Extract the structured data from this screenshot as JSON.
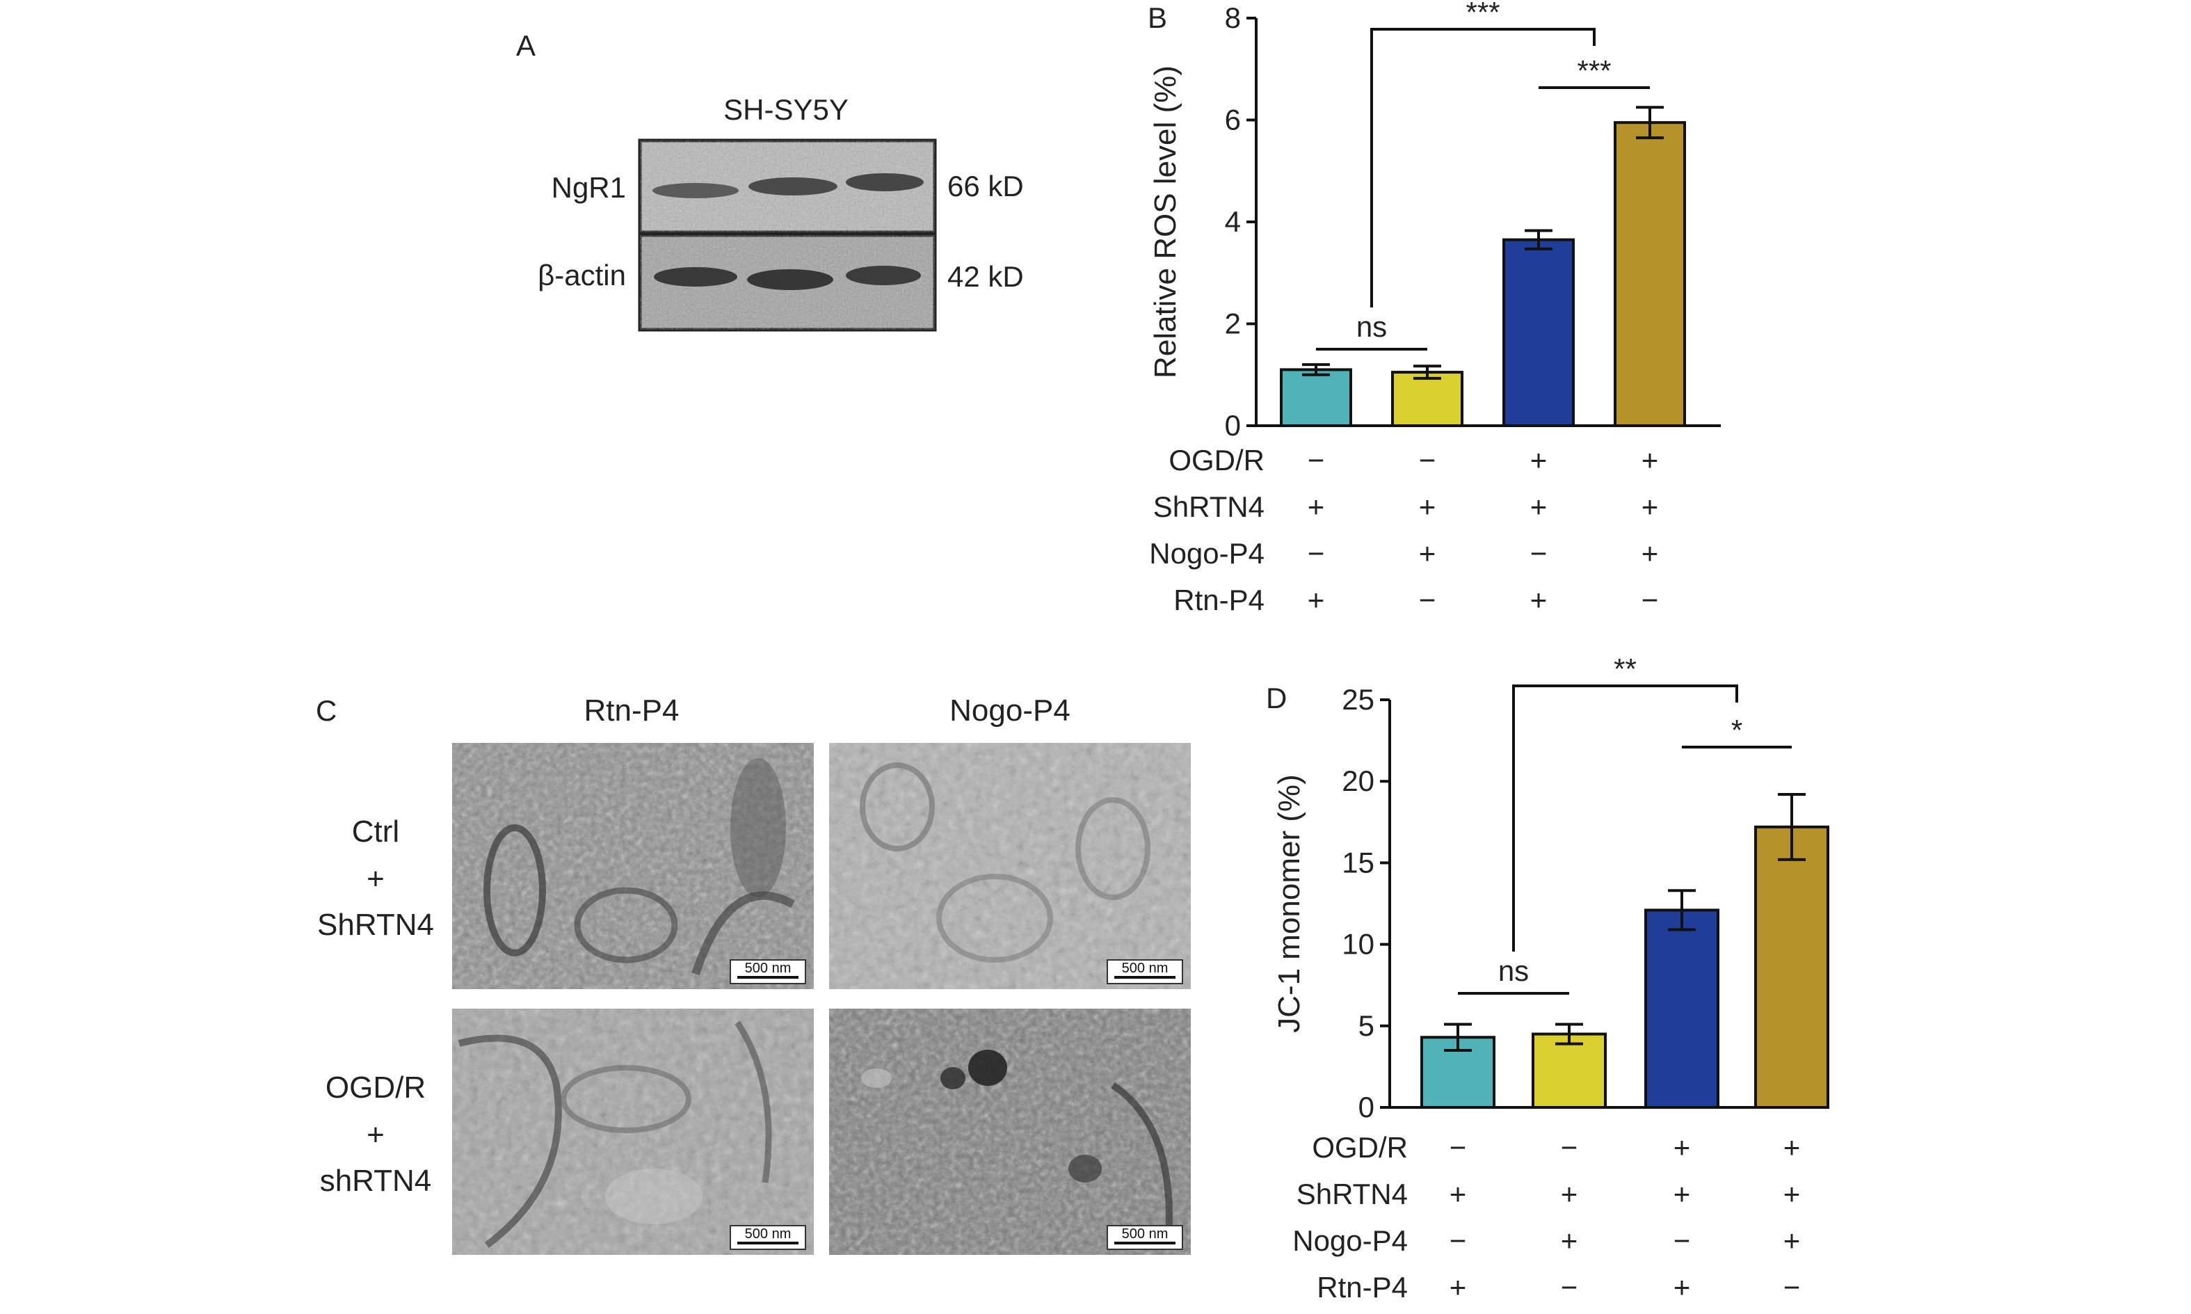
{
  "panel_a": {
    "letter": "A",
    "cell_line": "SH-SY5Y",
    "bands": [
      {
        "name": "NgR1",
        "size": "66 kD"
      },
      {
        "name": "β-actin",
        "size": "42 kD"
      }
    ]
  },
  "panel_c": {
    "letter": "C",
    "columns": [
      "Rtn-P4",
      "Nogo-P4"
    ],
    "rows": [
      [
        "Ctrl",
        "+",
        "ShRTN4"
      ],
      [
        "OGD/R",
        "+",
        "shRTN4"
      ]
    ],
    "scale_bar": "500 nm"
  },
  "colors": {
    "group1": "#4fb3b8",
    "group2": "#d9cf2e",
    "group3": "#1f3d99",
    "group4": "#b5932a"
  },
  "chart_data": [
    {
      "panel": "B",
      "type": "bar",
      "ylabel": "Relative ROS level (%)",
      "ylim": [
        0,
        8
      ],
      "yticks": [
        0,
        2,
        4,
        6,
        8
      ],
      "values": [
        1.1,
        1.05,
        3.65,
        5.95
      ],
      "errors": [
        0.1,
        0.12,
        0.18,
        0.3
      ],
      "treatments": [
        {
          "label": "OGD/R",
          "marks": [
            "−",
            "−",
            "+",
            "+"
          ]
        },
        {
          "label": "ShRTN4",
          "marks": [
            "+",
            "+",
            "+",
            "+"
          ]
        },
        {
          "label": "Nogo-P4",
          "marks": [
            "−",
            "+",
            "−",
            "+"
          ]
        },
        {
          "label": "Rtn-P4",
          "marks": [
            "+",
            "−",
            "+",
            "−"
          ]
        }
      ],
      "annotations": [
        {
          "text": "ns",
          "bars": [
            0,
            1
          ]
        },
        {
          "text": "***",
          "bars": [
            2,
            3
          ]
        },
        {
          "text": "***",
          "bars": [
            0,
            3
          ]
        }
      ]
    },
    {
      "panel": "D",
      "type": "bar",
      "ylabel": "JC-1 monomer (%)",
      "ylim": [
        0,
        25
      ],
      "yticks": [
        0,
        5,
        10,
        15,
        20,
        25
      ],
      "values": [
        4.3,
        4.5,
        12.1,
        17.2
      ],
      "errors": [
        0.8,
        0.6,
        1.2,
        2.0
      ],
      "treatments": [
        {
          "label": "OGD/R",
          "marks": [
            "−",
            "−",
            "+",
            "+"
          ]
        },
        {
          "label": "ShRTN4",
          "marks": [
            "+",
            "+",
            "+",
            "+"
          ]
        },
        {
          "label": "Nogo-P4",
          "marks": [
            "−",
            "+",
            "−",
            "+"
          ]
        },
        {
          "label": "Rtn-P4",
          "marks": [
            "+",
            "−",
            "+",
            "−"
          ]
        }
      ],
      "annotations": [
        {
          "text": "ns",
          "bars": [
            0,
            1
          ]
        },
        {
          "text": "*",
          "bars": [
            2,
            3
          ]
        },
        {
          "text": "**",
          "bars": [
            0,
            3
          ]
        }
      ]
    }
  ]
}
